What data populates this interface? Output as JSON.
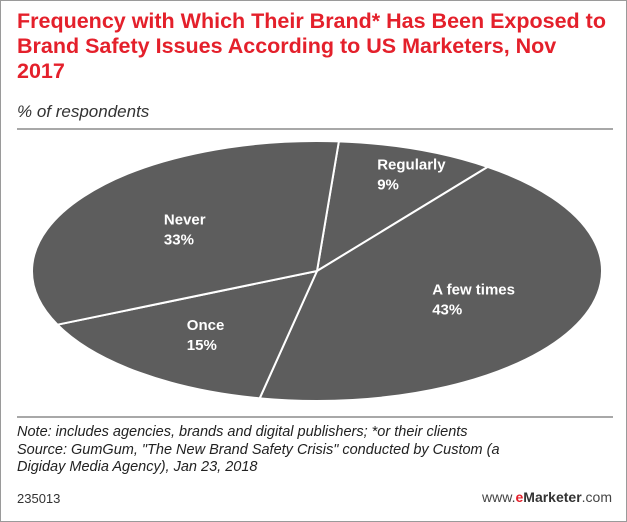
{
  "chart_data": {
    "type": "pie",
    "title": "Frequency with Which Their Brand* Has Been Exposed to Brand Safety Issues According to US Marketers, Nov 2017",
    "subtitle": "% of respondents",
    "slices": [
      {
        "label": "Regularly",
        "value": 9,
        "display": "9%"
      },
      {
        "label": "A few times",
        "value": 43,
        "display": "43%"
      },
      {
        "label": "Once",
        "value": 15,
        "display": "15%"
      },
      {
        "label": "Never",
        "value": 33,
        "display": "33%"
      }
    ],
    "colors": {
      "slice_fill": "#5d5d5d",
      "slice_stroke": "#ffffff",
      "label": "#ffffff",
      "title": "#e4202b"
    }
  },
  "notes": [
    "Note: includes agencies, brands and digital publishers; *or their clients",
    "Source: GumGum, \"The New Brand Safety Crisis\" conducted by Custom (a",
    "Digiday Media Agency), Jan 23, 2018"
  ],
  "footer": {
    "code": "235013",
    "brand_prefix": "www.",
    "brand_e": "e",
    "brand_name": "Marketer",
    "brand_suffix": ".com"
  }
}
